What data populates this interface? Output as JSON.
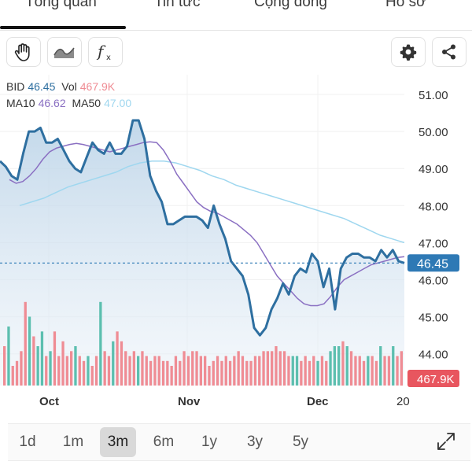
{
  "tabs": [
    {
      "label": "Tổng quan",
      "active": true
    },
    {
      "label": "Tin tức",
      "active": false
    },
    {
      "label": "Cộng đồng",
      "active": false
    },
    {
      "label": "Hồ sơ",
      "active": false
    }
  ],
  "toolbar": {
    "left_icons": [
      "hand-icon",
      "wave-icon",
      "function-icon"
    ],
    "right_icons": [
      "gear-icon",
      "share-icon"
    ]
  },
  "legend": {
    "row1": {
      "sym_label": "BID",
      "sym_value": "46.45",
      "vol_label": "Vol",
      "vol_value": "467.9K"
    },
    "row2": {
      "ma10_label": "MA10",
      "ma10_value": "46.62",
      "ma50_label": "MA50",
      "ma50_value": "47.00"
    }
  },
  "price_axis": {
    "ticks": [
      "51.00",
      "50.00",
      "49.00",
      "48.00",
      "47.00",
      "46.00",
      "45.00",
      "44.00"
    ],
    "current_price_tag": "46.45",
    "current_volume_tag": "467.9K"
  },
  "time_axis": {
    "labels": [
      "Oct",
      "Nov",
      "Dec",
      "20"
    ]
  },
  "ranges": [
    {
      "label": "1d",
      "active": false
    },
    {
      "label": "1m",
      "active": false
    },
    {
      "label": "3m",
      "active": true
    },
    {
      "label": "6m",
      "active": false
    },
    {
      "label": "1y",
      "active": false
    },
    {
      "label": "3y",
      "active": false
    },
    {
      "label": "5y",
      "active": false
    }
  ],
  "colors": {
    "price_line": "#2e6fa0",
    "ma10": "#8a6fc2",
    "ma50": "#9fd7ef",
    "vol_up": "#5cbfaf",
    "vol_down": "#ef8c94",
    "price_tag_bg": "#2e79b5",
    "vol_tag_bg": "#e8565f"
  },
  "chart_data": {
    "type": "line",
    "y_axis": {
      "min": 44,
      "max": 51,
      "ticks": [
        51,
        50,
        49,
        48,
        47,
        46,
        45,
        44
      ]
    },
    "x_axis": {
      "months": [
        "Oct",
        "Nov",
        "Dec"
      ]
    },
    "price": [
      49.2,
      49.05,
      48.8,
      48.7,
      49.4,
      50.0,
      50.0,
      50.1,
      49.7,
      49.7,
      49.8,
      49.5,
      49.2,
      49.0,
      48.9,
      49.3,
      49.7,
      49.5,
      49.4,
      49.7,
      49.4,
      49.4,
      49.6,
      50.3,
      50.3,
      49.8,
      48.8,
      48.4,
      48.1,
      47.5,
      47.5,
      47.6,
      47.7,
      47.7,
      47.7,
      47.6,
      47.4,
      48.0,
      47.5,
      47.1,
      46.5,
      46.3,
      46.1,
      45.6,
      44.7,
      44.5,
      44.7,
      45.2,
      45.5,
      45.9,
      45.6,
      46.1,
      46.3,
      46.2,
      46.7,
      46.5,
      45.8,
      46.3,
      45.2,
      46.3,
      46.6,
      46.7,
      46.7,
      46.6,
      46.6,
      46.5,
      46.8,
      46.6,
      46.8,
      46.5,
      46.45
    ],
    "ma10": [
      48.7,
      48.6,
      48.65,
      48.8,
      49.0,
      49.25,
      49.45,
      49.55,
      49.6,
      49.65,
      49.68,
      49.65,
      49.6,
      49.55,
      49.5,
      49.45,
      49.5,
      49.55,
      49.6,
      49.65,
      49.7,
      49.72,
      49.7,
      49.5,
      49.2,
      48.85,
      48.6,
      48.35,
      48.1,
      47.95,
      47.85,
      47.8,
      47.7,
      47.6,
      47.5,
      47.35,
      47.2,
      47.0,
      46.7,
      46.4,
      46.1,
      45.9,
      45.7,
      45.5,
      45.35,
      45.3,
      45.3,
      45.35,
      45.55,
      45.8,
      46.0,
      46.1,
      46.2,
      46.3,
      46.4,
      46.45,
      46.5,
      46.55,
      46.6,
      46.62
    ],
    "ma50": [
      48.0,
      48.1,
      48.2,
      48.35,
      48.5,
      48.6,
      48.7,
      48.8,
      48.9,
      49.05,
      49.15,
      49.2,
      49.2,
      49.15,
      49.05,
      48.95,
      48.8,
      48.7,
      48.55,
      48.45,
      48.35,
      48.25,
      48.15,
      48.05,
      47.95,
      47.85,
      47.75,
      47.65,
      47.5,
      47.35,
      47.2,
      47.1,
      47.0
    ],
    "volume_direction": [
      "down",
      "up",
      "down",
      "down",
      "down",
      "down",
      "up",
      "down",
      "up",
      "up",
      "down",
      "up",
      "down",
      "down",
      "down",
      "down",
      "down",
      "up",
      "down",
      "down",
      "up",
      "down",
      "down",
      "up",
      "down",
      "down",
      "up",
      "down",
      "down",
      "down",
      "down",
      "down",
      "up",
      "down",
      "down",
      "down",
      "down",
      "down",
      "down",
      "down",
      "down",
      "down",
      "down",
      "down",
      "down",
      "down",
      "down",
      "down",
      "down",
      "down",
      "down",
      "down",
      "down",
      "down",
      "down",
      "down",
      "down",
      "down",
      "down",
      "down",
      "down",
      "down",
      "down",
      "down",
      "down",
      "down",
      "down",
      "down",
      "down",
      "up",
      "up",
      "down",
      "down",
      "down",
      "down",
      "up",
      "down",
      "down",
      "up",
      "up",
      "up",
      "down",
      "up",
      "down",
      "down",
      "down",
      "down",
      "up",
      "down",
      "down",
      "up",
      "down",
      "down",
      "up",
      "down",
      "down"
    ],
    "volume_relative": [
      0.4,
      0.6,
      0.2,
      0.25,
      0.35,
      0.85,
      0.7,
      0.5,
      0.4,
      0.55,
      0.3,
      0.35,
      0.55,
      0.3,
      0.45,
      0.3,
      0.35,
      0.4,
      0.3,
      0.25,
      0.3,
      0.2,
      0.3,
      0.85,
      0.35,
      0.3,
      0.45,
      0.55,
      0.45,
      0.35,
      0.3,
      0.35,
      0.3,
      0.35,
      0.3,
      0.25,
      0.3,
      0.3,
      0.25,
      0.25,
      0.2,
      0.3,
      0.25,
      0.35,
      0.3,
      0.35,
      0.35,
      0.3,
      0.3,
      0.2,
      0.25,
      0.3,
      0.25,
      0.3,
      0.25,
      0.3,
      0.35,
      0.3,
      0.25,
      0.25,
      0.3,
      0.3,
      0.35,
      0.35,
      0.35,
      0.4,
      0.35,
      0.35,
      0.3,
      0.3,
      0.3,
      0.25,
      0.3,
      0.25,
      0.3,
      0.25,
      0.3,
      0.25,
      0.35,
      0.4,
      0.4,
      0.45,
      0.4,
      0.35,
      0.3,
      0.3,
      0.25,
      0.3,
      0.3,
      0.25,
      0.4,
      0.3,
      0.3,
      0.4,
      0.3,
      0.35
    ]
  }
}
